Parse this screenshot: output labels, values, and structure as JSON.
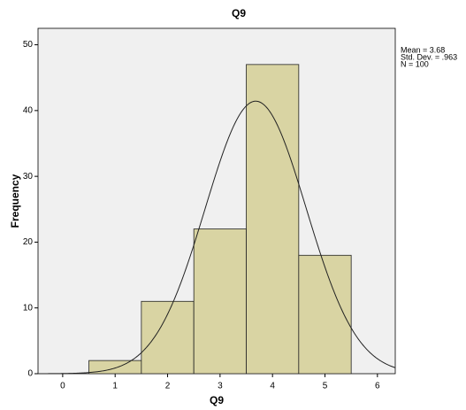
{
  "chart_data": {
    "type": "histogram",
    "title": "Q9",
    "x_label": "Q9",
    "y_label": "Frequency",
    "bins": [
      0.5,
      1.5,
      2.5,
      3.5,
      4.5,
      5.5
    ],
    "counts": [
      2,
      11,
      22,
      47,
      18
    ],
    "color": "#d9d4a3",
    "xlim": [
      -0.47,
      6.34
    ],
    "xticks": [
      0,
      1,
      2,
      3,
      4,
      5,
      6
    ],
    "ylim": [
      0,
      52.5
    ],
    "yticks": [
      0,
      10,
      20,
      30,
      40,
      50
    ],
    "stats": [
      {
        "value": 3.68,
        "label": "Mean = 3.68"
      },
      {
        "value": 0.963,
        "label": "Std. Dev. = .963"
      },
      {
        "value": 100,
        "label": "N = 100"
      }
    ],
    "normal_curve": true
  }
}
